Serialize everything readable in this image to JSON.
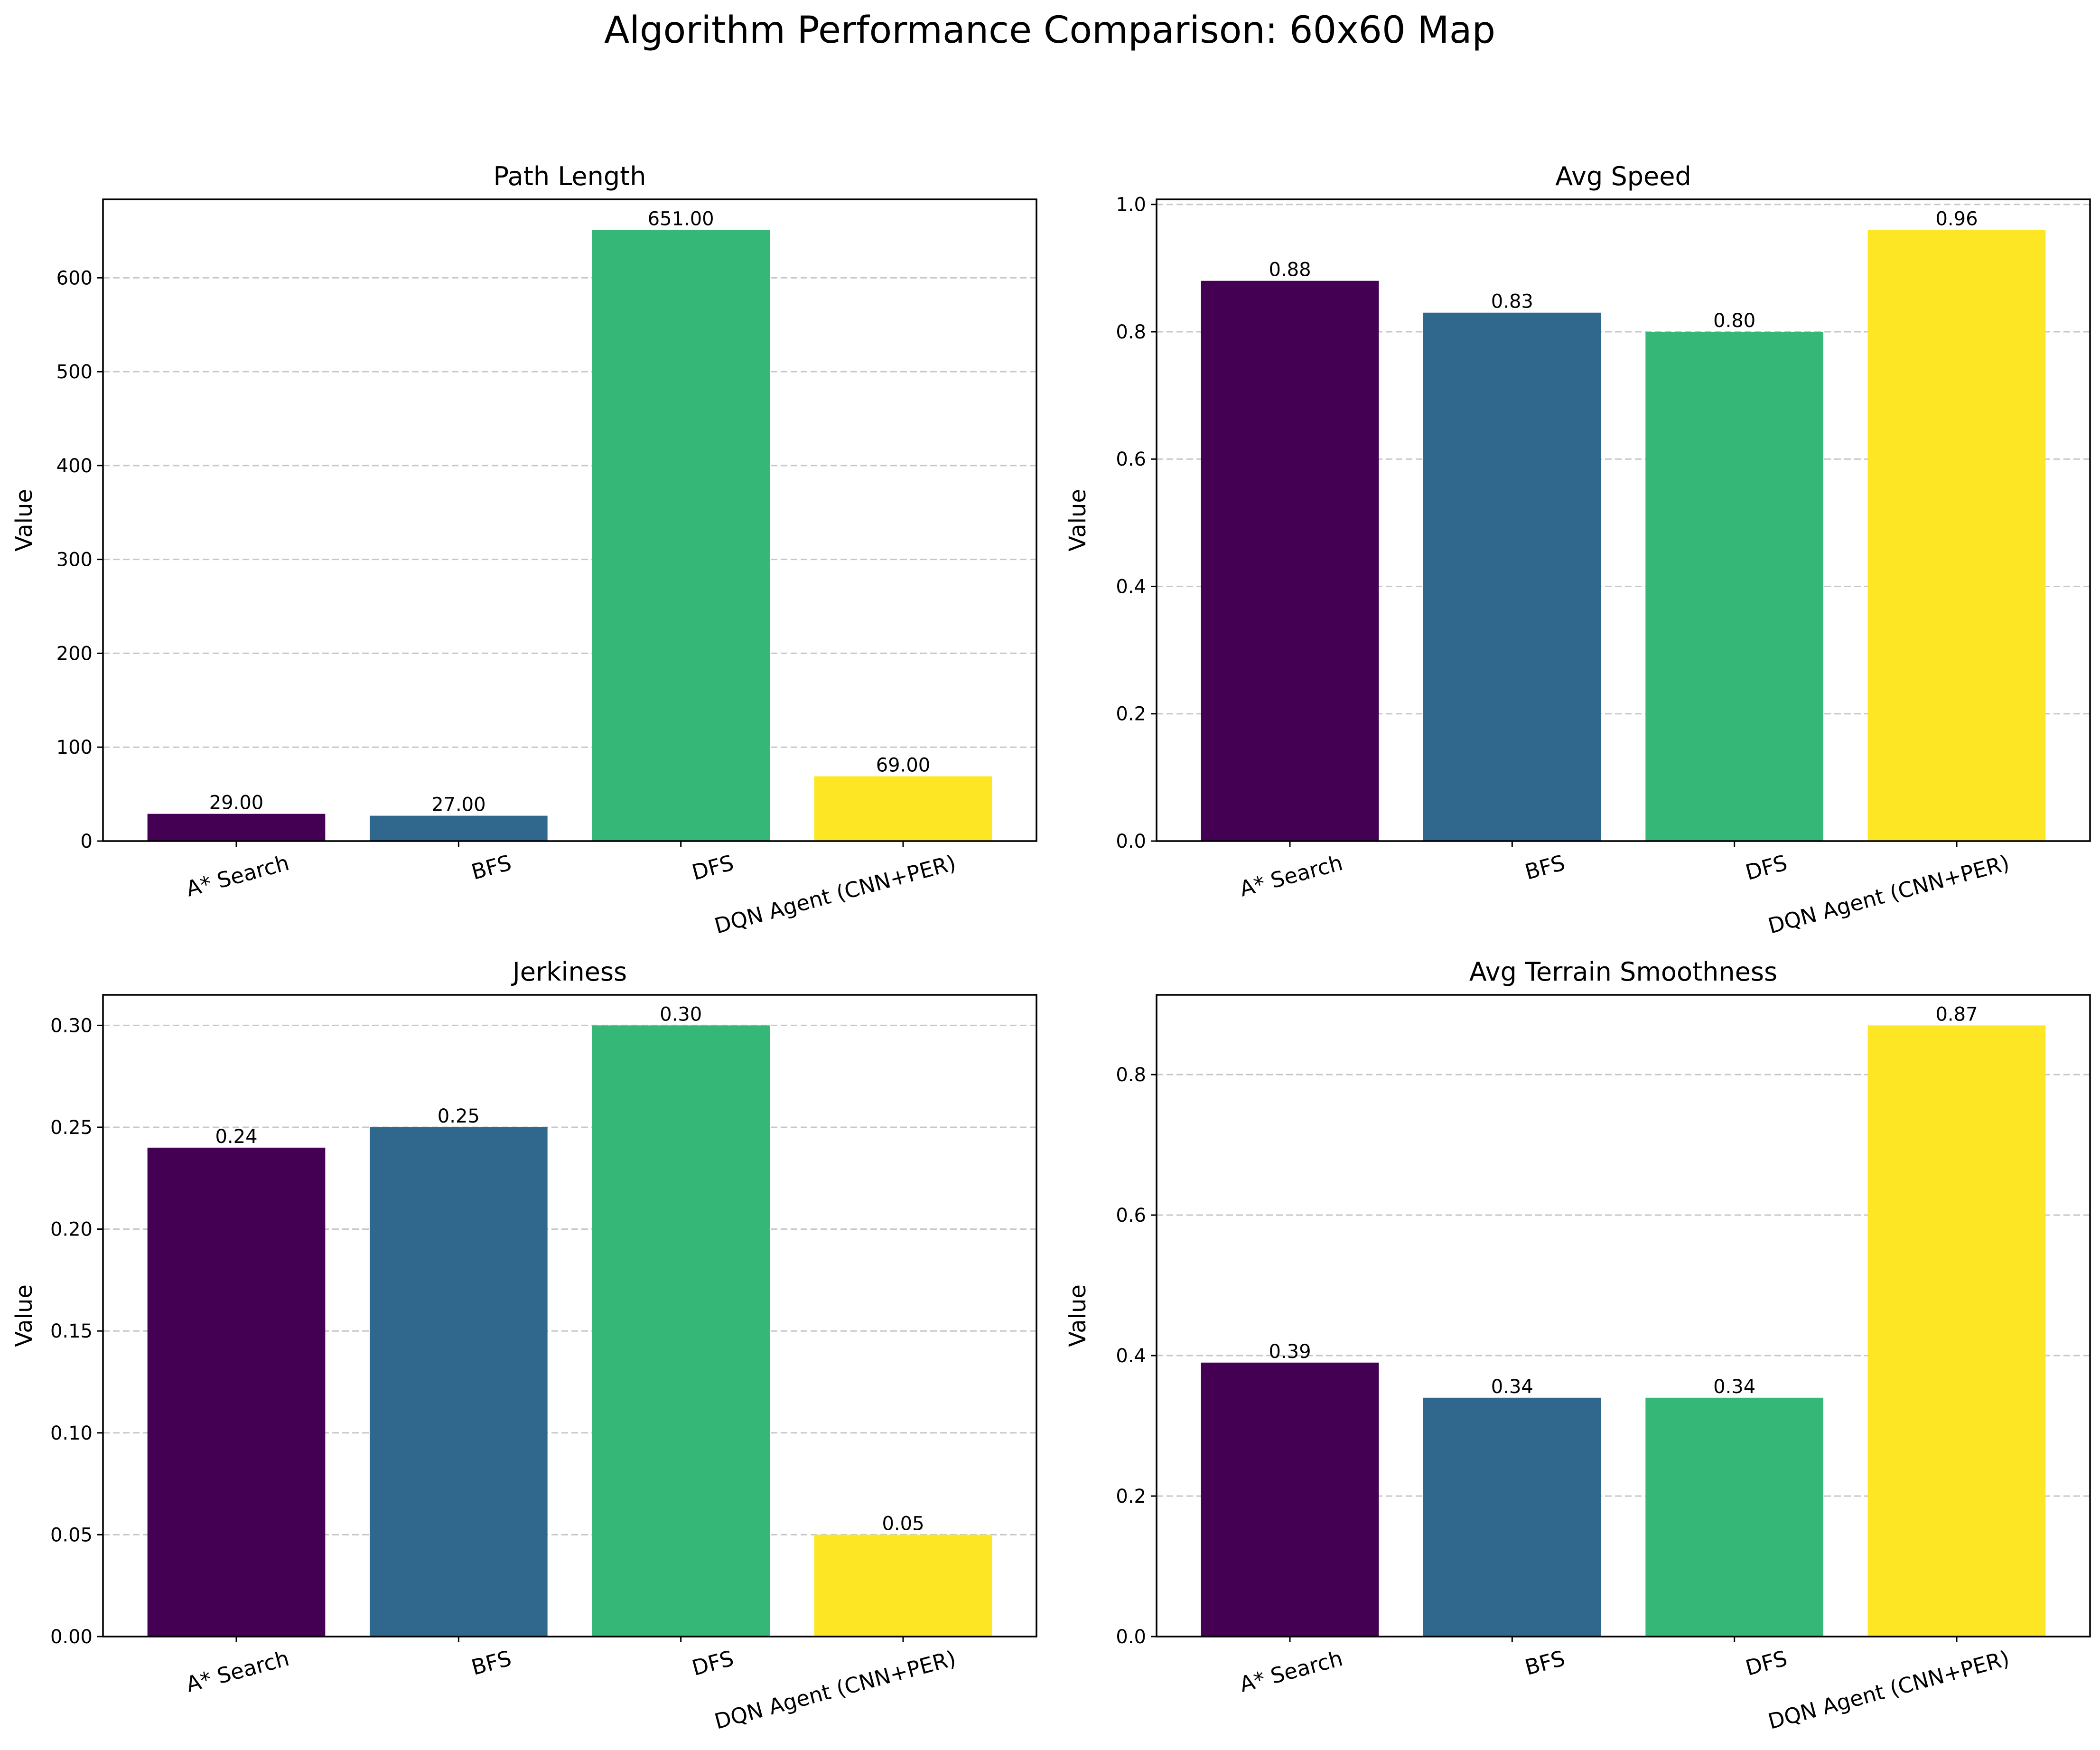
{
  "figure": {
    "title": "Algorithm Performance Comparison: 60x60 Map"
  },
  "colors": {
    "A* Search": "#440154",
    "BFS": "#30678d",
    "DFS": "#35b778",
    "DQN Agent (CNN+PER)": "#fde724",
    "grid": "#b0b0b0",
    "axes": "#000000"
  },
  "chart_data": [
    {
      "type": "bar",
      "title": "Path Length",
      "xlabel": "",
      "ylabel": "Value",
      "categories": [
        "A* Search",
        "BFS",
        "DFS",
        "DQN Agent (CNN+PER)"
      ],
      "values": [
        29,
        27,
        651,
        69
      ],
      "value_labels": [
        "29.00",
        "27.00",
        "651.00",
        "69.00"
      ],
      "ylim": [
        0,
        683.55
      ],
      "yticks": [
        0,
        100,
        200,
        300,
        400,
        500,
        600
      ],
      "ytick_labels": [
        "0",
        "100",
        "200",
        "300",
        "400",
        "500",
        "600"
      ],
      "grid": "y, dashed"
    },
    {
      "type": "bar",
      "title": "Avg Speed",
      "xlabel": "",
      "ylabel": "Value",
      "categories": [
        "A* Search",
        "BFS",
        "DFS",
        "DQN Agent (CNN+PER)"
      ],
      "values": [
        0.88,
        0.83,
        0.8,
        0.96
      ],
      "value_labels": [
        "0.88",
        "0.83",
        "0.80",
        "0.96"
      ],
      "ylim": [
        0,
        1.008
      ],
      "yticks": [
        0,
        0.2,
        0.4,
        0.6,
        0.8,
        1.0
      ],
      "ytick_labels": [
        "0.0",
        "0.2",
        "0.4",
        "0.6",
        "0.8",
        "1.0"
      ],
      "grid": "y, dashed"
    },
    {
      "type": "bar",
      "title": "Jerkiness",
      "xlabel": "",
      "ylabel": "Value",
      "categories": [
        "A* Search",
        "BFS",
        "DFS",
        "DQN Agent (CNN+PER)"
      ],
      "values": [
        0.24,
        0.25,
        0.3,
        0.05
      ],
      "value_labels": [
        "0.24",
        "0.25",
        "0.30",
        "0.05"
      ],
      "ylim": [
        0,
        0.315
      ],
      "yticks": [
        0,
        0.05,
        0.1,
        0.15,
        0.2,
        0.25,
        0.3
      ],
      "ytick_labels": [
        "0.00",
        "0.05",
        "0.10",
        "0.15",
        "0.20",
        "0.25",
        "0.30"
      ],
      "grid": "y, dashed"
    },
    {
      "type": "bar",
      "title": "Avg Terrain Smoothness",
      "xlabel": "",
      "ylabel": "Value",
      "categories": [
        "A* Search",
        "BFS",
        "DFS",
        "DQN Agent (CNN+PER)"
      ],
      "values": [
        0.39,
        0.34,
        0.34,
        0.87
      ],
      "value_labels": [
        "0.39",
        "0.34",
        "0.34",
        "0.87"
      ],
      "ylim": [
        0,
        0.9135
      ],
      "yticks": [
        0,
        0.2,
        0.4,
        0.6,
        0.8
      ],
      "ytick_labels": [
        "0.0",
        "0.2",
        "0.4",
        "0.6",
        "0.8"
      ],
      "grid": "y, dashed"
    }
  ]
}
